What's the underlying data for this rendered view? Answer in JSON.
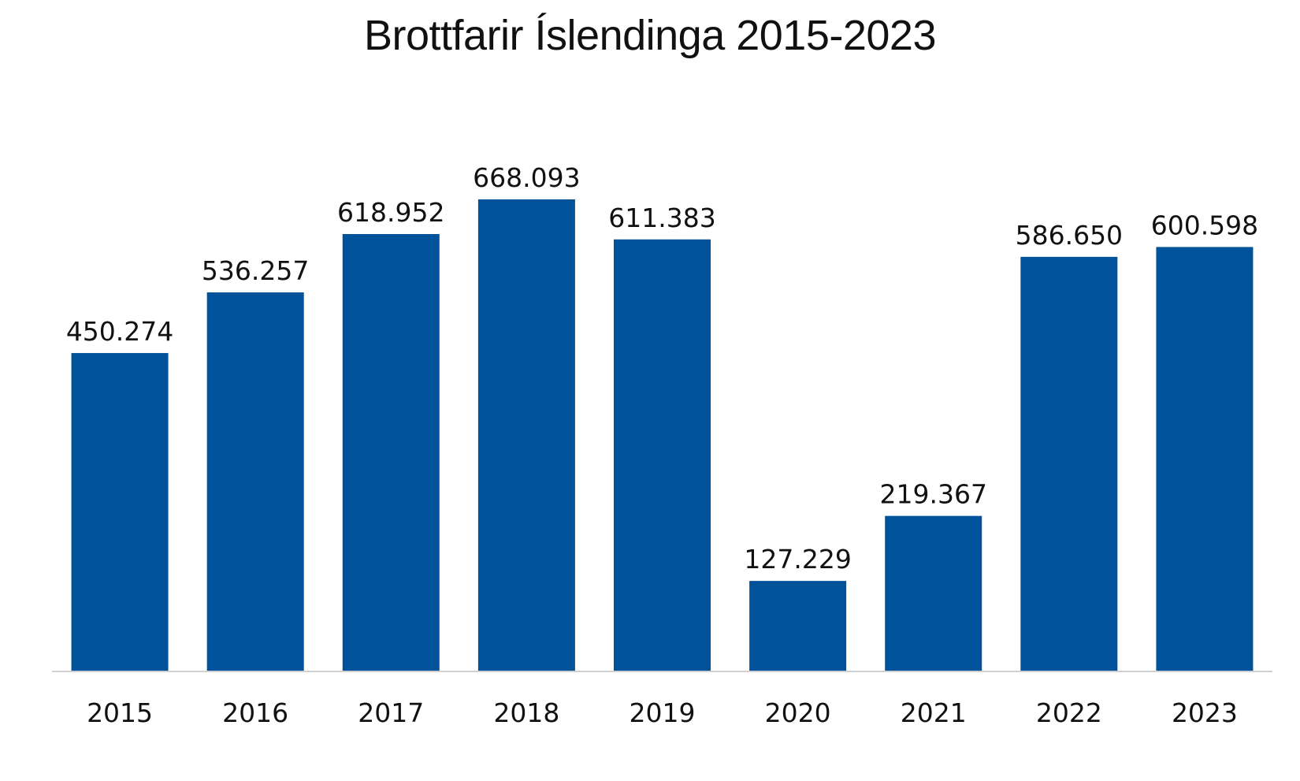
{
  "chart_data": {
    "type": "bar",
    "title": "Brottfarir Íslendinga 2015-2023",
    "xlabel": "",
    "ylabel": "",
    "categories": [
      "2015",
      "2016",
      "2017",
      "2018",
      "2019",
      "2020",
      "2021",
      "2022",
      "2023"
    ],
    "values": [
      450274,
      536257,
      618952,
      668093,
      611383,
      127229,
      219367,
      586650,
      600598
    ],
    "data_labels": [
      "450.274",
      "536.257",
      "618.952",
      "668.093",
      "611.383",
      "127.229",
      "219.367",
      "586.650",
      "600.598"
    ],
    "ylim": [
      0,
      668093
    ],
    "grid": false,
    "legend": "none",
    "bar_color": "#00529B",
    "axis_color": "#D0D0D0"
  }
}
